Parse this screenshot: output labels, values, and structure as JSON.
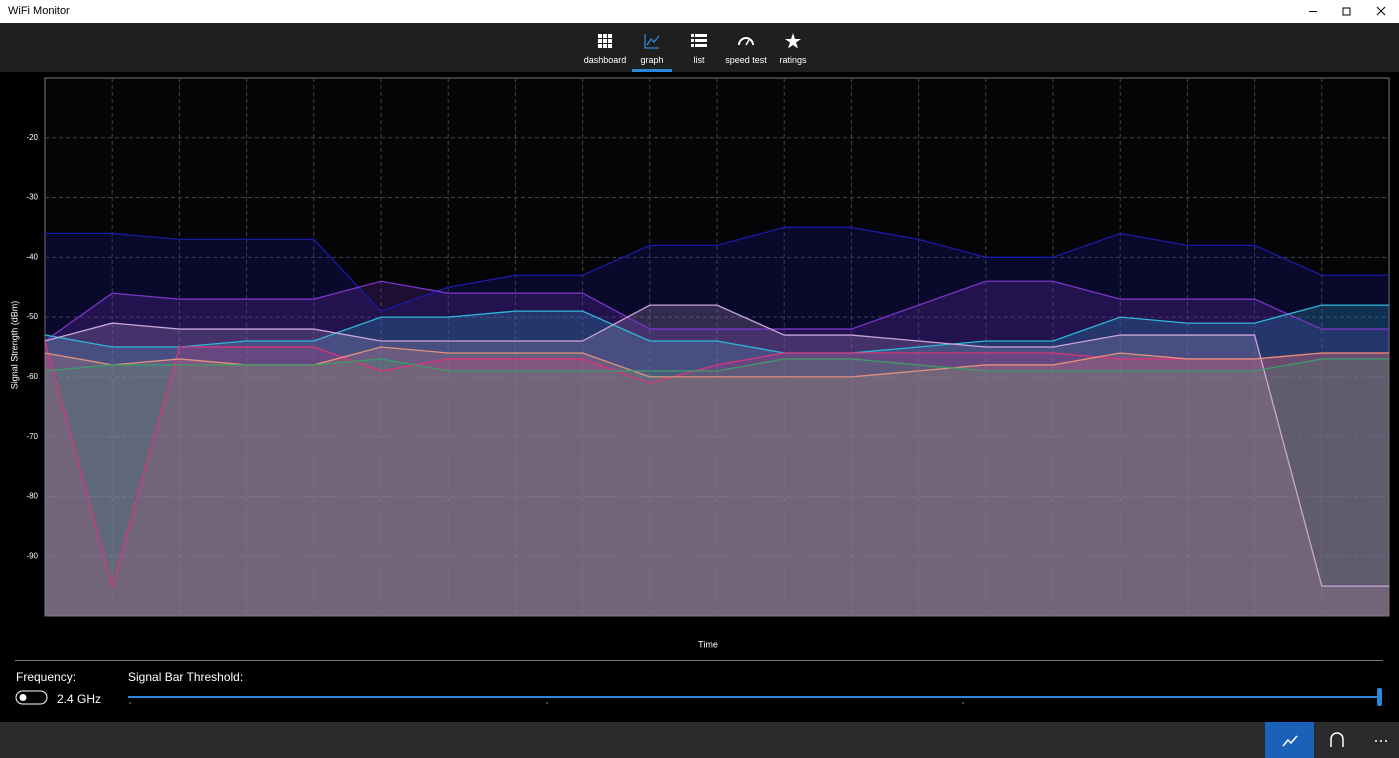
{
  "window": {
    "title": "WiFi Monitor"
  },
  "nav": [
    "dashboard",
    "graph",
    "list",
    "speed test",
    "ratings"
  ],
  "chart_data": {
    "type": "line",
    "y_label": "Signal Strength (dBm)",
    "x_label": "Time",
    "categories": [
      null,
      null,
      null,
      null,
      null,
      null,
      null,
      null,
      null,
      null,
      null,
      null,
      null,
      null,
      null,
      null,
      null,
      null,
      null,
      null,
      null
    ],
    "ylim": [
      -100,
      -10
    ],
    "yticks": [
      -20,
      -30,
      -40,
      -50,
      -60,
      -70,
      -80,
      -90
    ],
    "grid": true,
    "area": true,
    "series": [
      {
        "color": "#1a1aa8",
        "values": [
          -36,
          -36,
          -37,
          -37,
          -37,
          -49,
          -45,
          -43,
          -43,
          -38,
          -38,
          -35,
          -35,
          -37,
          -40,
          -40,
          -36,
          -38,
          -38,
          -43,
          -43
        ]
      },
      {
        "color": "#7a34c8",
        "values": [
          -54,
          -46,
          -47,
          -47,
          -47,
          -44,
          -46,
          -46,
          -46,
          -52,
          -52,
          -52,
          -52,
          -48,
          -44,
          -44,
          -47,
          -47,
          -47,
          -52,
          -52
        ]
      },
      {
        "color": "#2fb6d8",
        "values": [
          -53,
          -55,
          -55,
          -54,
          -54,
          -50,
          -50,
          -49,
          -49,
          -54,
          -54,
          -56,
          -56,
          -55,
          -54,
          -54,
          -50,
          -51,
          -51,
          -48,
          -48
        ]
      },
      {
        "color": "#c9a6d8",
        "values": [
          -54,
          -51,
          -52,
          -52,
          -52,
          -54,
          -54,
          -54,
          -54,
          -48,
          -48,
          -53,
          -53,
          -54,
          -55,
          -55,
          -53,
          -53,
          -53,
          -95,
          -95
        ]
      },
      {
        "color": "#d8347c",
        "values": [
          -54,
          -95,
          -55,
          -55,
          -55,
          -59,
          -57,
          -57,
          -57,
          -61,
          -58,
          -56,
          -56,
          -56,
          -56,
          -56,
          -57,
          -57,
          -57,
          -56,
          -56
        ]
      },
      {
        "color": "#e0927c",
        "values": [
          -56,
          -58,
          -57,
          -58,
          -58,
          -55,
          -56,
          -56,
          -56,
          -60,
          -60,
          -60,
          -60,
          -59,
          -58,
          -58,
          -56,
          -57,
          -57,
          -56,
          -56
        ]
      },
      {
        "color": "#3f9a6a",
        "values": [
          -59,
          -58,
          -58,
          -58,
          -58,
          -57,
          -59,
          -59,
          -59,
          -59,
          -59,
          -57,
          -57,
          -58,
          -59,
          -59,
          -59,
          -59,
          -59,
          -57,
          -57
        ]
      }
    ]
  },
  "controls": {
    "frequency_label": "Frequency:",
    "frequency_value": "2.4 GHz",
    "threshold_label": "Signal Bar Threshold:"
  }
}
